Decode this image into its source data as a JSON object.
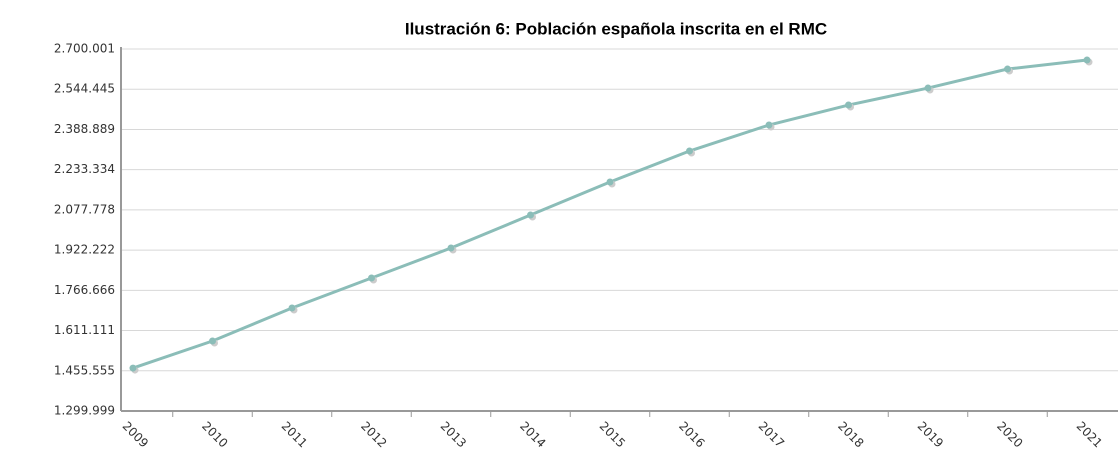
{
  "chart_data": {
    "type": "line",
    "title": "Ilustración 6: Población española inscrita en el RMC",
    "categories": [
      "2009",
      "2010",
      "2011",
      "2012",
      "2013",
      "2014",
      "2015",
      "2016",
      "2017",
      "2018",
      "2019",
      "2020",
      "2021"
    ],
    "series": [
      {
        "name": "Población",
        "color": "#8bbdb8",
        "values": [
          1466000,
          1570700,
          1698300,
          1814300,
          1930300,
          2057900,
          2185500,
          2305400,
          2406000,
          2483300,
          2549000,
          2622500,
          2657300
        ]
      }
    ],
    "ylim": [
      1299999,
      2700001
    ],
    "yticks": [
      {
        "value": 1299999,
        "label": "1.299.999"
      },
      {
        "value": 1455555,
        "label": "1.455.555"
      },
      {
        "value": 1611111,
        "label": "1.611.111"
      },
      {
        "value": 1766666,
        "label": "1.766.666"
      },
      {
        "value": 1922222,
        "label": "1.922.222"
      },
      {
        "value": 2077778,
        "label": "2.077.778"
      },
      {
        "value": 2233334,
        "label": "2.233.334"
      },
      {
        "value": 2388889,
        "label": "2.388.889"
      },
      {
        "value": 2544445,
        "label": "2.544.445"
      },
      {
        "value": 2700001,
        "label": "2.700.001"
      }
    ],
    "grid": true
  }
}
